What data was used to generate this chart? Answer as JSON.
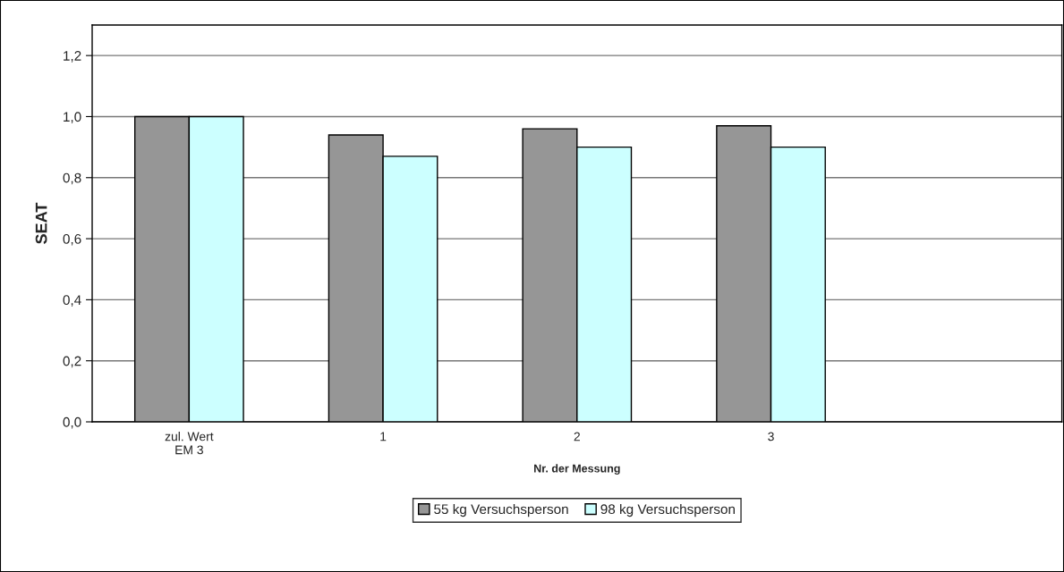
{
  "chart_data": {
    "type": "bar",
    "xlabel": "Nr. der Messung",
    "ylabel": "SEAT",
    "categories": [
      "zul. Wert\nEM 3",
      "1",
      "2",
      "3",
      null
    ],
    "series": [
      {
        "name": "55 kg Versuchsperson",
        "color": "#969696",
        "values": [
          1.0,
          0.94,
          0.96,
          0.97,
          null
        ]
      },
      {
        "name": "98 kg Versuchsperson",
        "color": "#ccffff",
        "values": [
          1.0,
          0.87,
          0.9,
          0.9,
          null
        ]
      }
    ],
    "ylim": [
      0,
      1.3
    ],
    "yticks": [
      {
        "value": 0,
        "label": "0,0"
      },
      {
        "value": 0.2,
        "label": "0,2"
      },
      {
        "value": 0.4,
        "label": "0,4"
      },
      {
        "value": 0.6,
        "label": "0,6"
      },
      {
        "value": 0.8,
        "label": "0,8"
      },
      {
        "value": 1.0,
        "label": "1,0"
      },
      {
        "value": 1.2,
        "label": "1,2"
      }
    ],
    "grid": "y",
    "legend": "bottom"
  }
}
